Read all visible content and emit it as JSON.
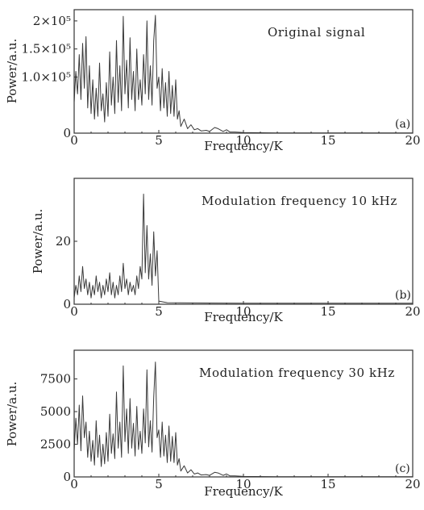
{
  "chart_data": [
    {
      "type": "line",
      "title": "Original signal",
      "panel_label": "(a)",
      "xlabel": "Frequency/K",
      "ylabel": "Power/a.u.",
      "xlim": [
        0,
        20
      ],
      "ylim": [
        0,
        220000
      ],
      "xticks": [
        0,
        5,
        10,
        15,
        20
      ],
      "xtick_labels": [
        "0",
        "5",
        "10",
        "15",
        "20"
      ],
      "yticks": [
        0,
        100000,
        150000,
        200000
      ],
      "ytick_labels": [
        "0",
        "1.0×10⁵",
        "1.5×10⁵",
        "2×10⁵"
      ],
      "series": [
        {
          "points": [
            [
              0.0,
              55000
            ],
            [
              0.1,
              110000
            ],
            [
              0.2,
              70000
            ],
            [
              0.3,
              140000
            ],
            [
              0.4,
              60000
            ],
            [
              0.5,
              160000
            ],
            [
              0.6,
              80000
            ],
            [
              0.7,
              172000
            ],
            [
              0.8,
              45000
            ],
            [
              0.9,
              120000
            ],
            [
              1.0,
              35000
            ],
            [
              1.1,
              95000
            ],
            [
              1.2,
              25000
            ],
            [
              1.3,
              80000
            ],
            [
              1.4,
              30000
            ],
            [
              1.5,
              125000
            ],
            [
              1.6,
              40000
            ],
            [
              1.7,
              70000
            ],
            [
              1.8,
              20000
            ],
            [
              1.9,
              90000
            ],
            [
              2.0,
              30000
            ],
            [
              2.1,
              145000
            ],
            [
              2.2,
              50000
            ],
            [
              2.3,
              100000
            ],
            [
              2.4,
              35000
            ],
            [
              2.5,
              165000
            ],
            [
              2.6,
              55000
            ],
            [
              2.7,
              120000
            ],
            [
              2.8,
              40000
            ],
            [
              2.9,
              208000
            ],
            [
              3.0,
              70000
            ],
            [
              3.1,
              130000
            ],
            [
              3.2,
              45000
            ],
            [
              3.3,
              170000
            ],
            [
              3.4,
              60000
            ],
            [
              3.5,
              110000
            ],
            [
              3.6,
              40000
            ],
            [
              3.7,
              150000
            ],
            [
              3.8,
              60000
            ],
            [
              3.9,
              95000
            ],
            [
              4.0,
              50000
            ],
            [
              4.1,
              140000
            ],
            [
              4.2,
              70000
            ],
            [
              4.3,
              200000
            ],
            [
              4.4,
              60000
            ],
            [
              4.5,
              120000
            ],
            [
              4.6,
              50000
            ],
            [
              4.7,
              165000
            ],
            [
              4.8,
              210000
            ],
            [
              4.9,
              80000
            ],
            [
              5.0,
              100000
            ],
            [
              5.1,
              40000
            ],
            [
              5.2,
              115000
            ],
            [
              5.3,
              45000
            ],
            [
              5.4,
              90000
            ],
            [
              5.5,
              30000
            ],
            [
              5.6,
              110000
            ],
            [
              5.7,
              35000
            ],
            [
              5.8,
              85000
            ],
            [
              5.9,
              30000
            ],
            [
              6.0,
              95000
            ],
            [
              6.1,
              25000
            ],
            [
              6.2,
              40000
            ],
            [
              6.3,
              12000
            ],
            [
              6.5,
              25000
            ],
            [
              6.7,
              8000
            ],
            [
              6.9,
              15000
            ],
            [
              7.1,
              6000
            ],
            [
              7.3,
              8000
            ],
            [
              7.5,
              4000
            ],
            [
              7.8,
              5000
            ],
            [
              8.0,
              3000
            ],
            [
              8.3,
              10000
            ],
            [
              8.5,
              8000
            ],
            [
              8.8,
              3000
            ],
            [
              9.0,
              6000
            ],
            [
              9.2,
              2000
            ],
            [
              9.5,
              2000
            ],
            [
              10.0,
              1000
            ],
            [
              12.0,
              500
            ],
            [
              15.0,
              300
            ],
            [
              20.0,
              300
            ]
          ]
        }
      ]
    },
    {
      "type": "line",
      "title": "Modulation frequency 10 kHz",
      "panel_label": "(b)",
      "xlabel": "Frequency/K",
      "ylabel": "Power/a.u.",
      "xlim": [
        0,
        20
      ],
      "ylim": [
        0,
        40
      ],
      "xticks": [
        0,
        5,
        10,
        15,
        20
      ],
      "xtick_labels": [
        "0",
        "5",
        "10",
        "15",
        "20"
      ],
      "yticks": [
        0,
        20
      ],
      "ytick_labels": [
        "0",
        "20"
      ],
      "series": [
        {
          "points": [
            [
              0.0,
              2
            ],
            [
              0.1,
              6
            ],
            [
              0.2,
              3
            ],
            [
              0.3,
              9
            ],
            [
              0.4,
              4
            ],
            [
              0.5,
              12
            ],
            [
              0.6,
              5
            ],
            [
              0.7,
              8
            ],
            [
              0.8,
              3
            ],
            [
              0.9,
              7
            ],
            [
              1.0,
              2
            ],
            [
              1.1,
              6
            ],
            [
              1.2,
              3
            ],
            [
              1.3,
              9
            ],
            [
              1.4,
              4
            ],
            [
              1.5,
              7
            ],
            [
              1.6,
              2
            ],
            [
              1.7,
              6
            ],
            [
              1.8,
              3
            ],
            [
              1.9,
              8
            ],
            [
              2.0,
              4
            ],
            [
              2.1,
              10
            ],
            [
              2.2,
              3
            ],
            [
              2.3,
              7
            ],
            [
              2.4,
              2
            ],
            [
              2.5,
              6
            ],
            [
              2.6,
              3
            ],
            [
              2.7,
              9
            ],
            [
              2.8,
              4
            ],
            [
              2.9,
              13
            ],
            [
              3.0,
              5
            ],
            [
              3.1,
              8
            ],
            [
              3.2,
              3
            ],
            [
              3.3,
              7
            ],
            [
              3.4,
              4
            ],
            [
              3.5,
              6
            ],
            [
              3.6,
              3
            ],
            [
              3.7,
              9
            ],
            [
              3.8,
              5
            ],
            [
              3.9,
              12
            ],
            [
              4.0,
              8
            ],
            [
              4.1,
              35
            ],
            [
              4.2,
              10
            ],
            [
              4.3,
              25
            ],
            [
              4.4,
              8
            ],
            [
              4.5,
              16
            ],
            [
              4.6,
              6
            ],
            [
              4.7,
              23
            ],
            [
              4.8,
              9
            ],
            [
              4.9,
              17
            ],
            [
              5.0,
              1
            ],
            [
              5.5,
              0.5
            ],
            [
              10.0,
              0.3
            ],
            [
              20.0,
              0.3
            ]
          ]
        }
      ]
    },
    {
      "type": "line",
      "title": "Modulation frequency 30 kHz",
      "panel_label": "(c)",
      "xlabel": "Frequency/K",
      "ylabel": "Power/a.u.",
      "xlim": [
        0,
        20
      ],
      "ylim": [
        0,
        9700
      ],
      "xticks": [
        0,
        5,
        10,
        15,
        20
      ],
      "xtick_labels": [
        "0",
        "5",
        "10",
        "15",
        "20"
      ],
      "yticks": [
        0,
        2500,
        5000,
        7500
      ],
      "ytick_labels": [
        "0",
        "2500",
        "5000",
        "7500"
      ],
      "series": [
        {
          "points": [
            [
              0.0,
              2000
            ],
            [
              0.1,
              4500
            ],
            [
              0.2,
              2500
            ],
            [
              0.3,
              5500
            ],
            [
              0.4,
              2000
            ],
            [
              0.5,
              6200
            ],
            [
              0.6,
              3000
            ],
            [
              0.7,
              4200
            ],
            [
              0.8,
              1500
            ],
            [
              0.9,
              3500
            ],
            [
              1.0,
              1200
            ],
            [
              1.1,
              2800
            ],
            [
              1.2,
              900
            ],
            [
              1.3,
              4300
            ],
            [
              1.4,
              1500
            ],
            [
              1.5,
              3200
            ],
            [
              1.6,
              800
            ],
            [
              1.7,
              2500
            ],
            [
              1.8,
              1000
            ],
            [
              1.9,
              3400
            ],
            [
              2.0,
              1200
            ],
            [
              2.1,
              4800
            ],
            [
              2.2,
              1800
            ],
            [
              2.3,
              3300
            ],
            [
              2.4,
              1400
            ],
            [
              2.5,
              6500
            ],
            [
              2.6,
              2200
            ],
            [
              2.7,
              4200
            ],
            [
              2.8,
              1500
            ],
            [
              2.9,
              8500
            ],
            [
              3.0,
              2700
            ],
            [
              3.1,
              5200
            ],
            [
              3.2,
              1800
            ],
            [
              3.3,
              6000
            ],
            [
              3.4,
              2200
            ],
            [
              3.5,
              4100
            ],
            [
              3.6,
              1600
            ],
            [
              3.7,
              5400
            ],
            [
              3.8,
              2100
            ],
            [
              3.9,
              3500
            ],
            [
              4.0,
              1800
            ],
            [
              4.1,
              5200
            ],
            [
              4.2,
              2600
            ],
            [
              4.3,
              8200
            ],
            [
              4.4,
              2300
            ],
            [
              4.5,
              4300
            ],
            [
              4.6,
              1900
            ],
            [
              4.7,
              6100
            ],
            [
              4.8,
              8800
            ],
            [
              4.9,
              3000
            ],
            [
              5.0,
              3600
            ],
            [
              5.1,
              1500
            ],
            [
              5.2,
              4200
            ],
            [
              5.3,
              1600
            ],
            [
              5.4,
              3200
            ],
            [
              5.5,
              1100
            ],
            [
              5.6,
              3900
            ],
            [
              5.7,
              1200
            ],
            [
              5.8,
              3100
            ],
            [
              5.9,
              1100
            ],
            [
              6.0,
              3400
            ],
            [
              6.1,
              900
            ],
            [
              6.2,
              1400
            ],
            [
              6.3,
              450
            ],
            [
              6.5,
              850
            ],
            [
              6.7,
              300
            ],
            [
              6.9,
              550
            ],
            [
              7.1,
              220
            ],
            [
              7.3,
              300
            ],
            [
              7.5,
              150
            ],
            [
              7.8,
              180
            ],
            [
              8.0,
              120
            ],
            [
              8.3,
              350
            ],
            [
              8.5,
              300
            ],
            [
              8.8,
              120
            ],
            [
              9.0,
              220
            ],
            [
              9.2,
              80
            ],
            [
              9.5,
              80
            ],
            [
              10.0,
              40
            ],
            [
              12.0,
              20
            ],
            [
              15.0,
              10
            ],
            [
              20.0,
              10
            ]
          ]
        }
      ]
    }
  ]
}
